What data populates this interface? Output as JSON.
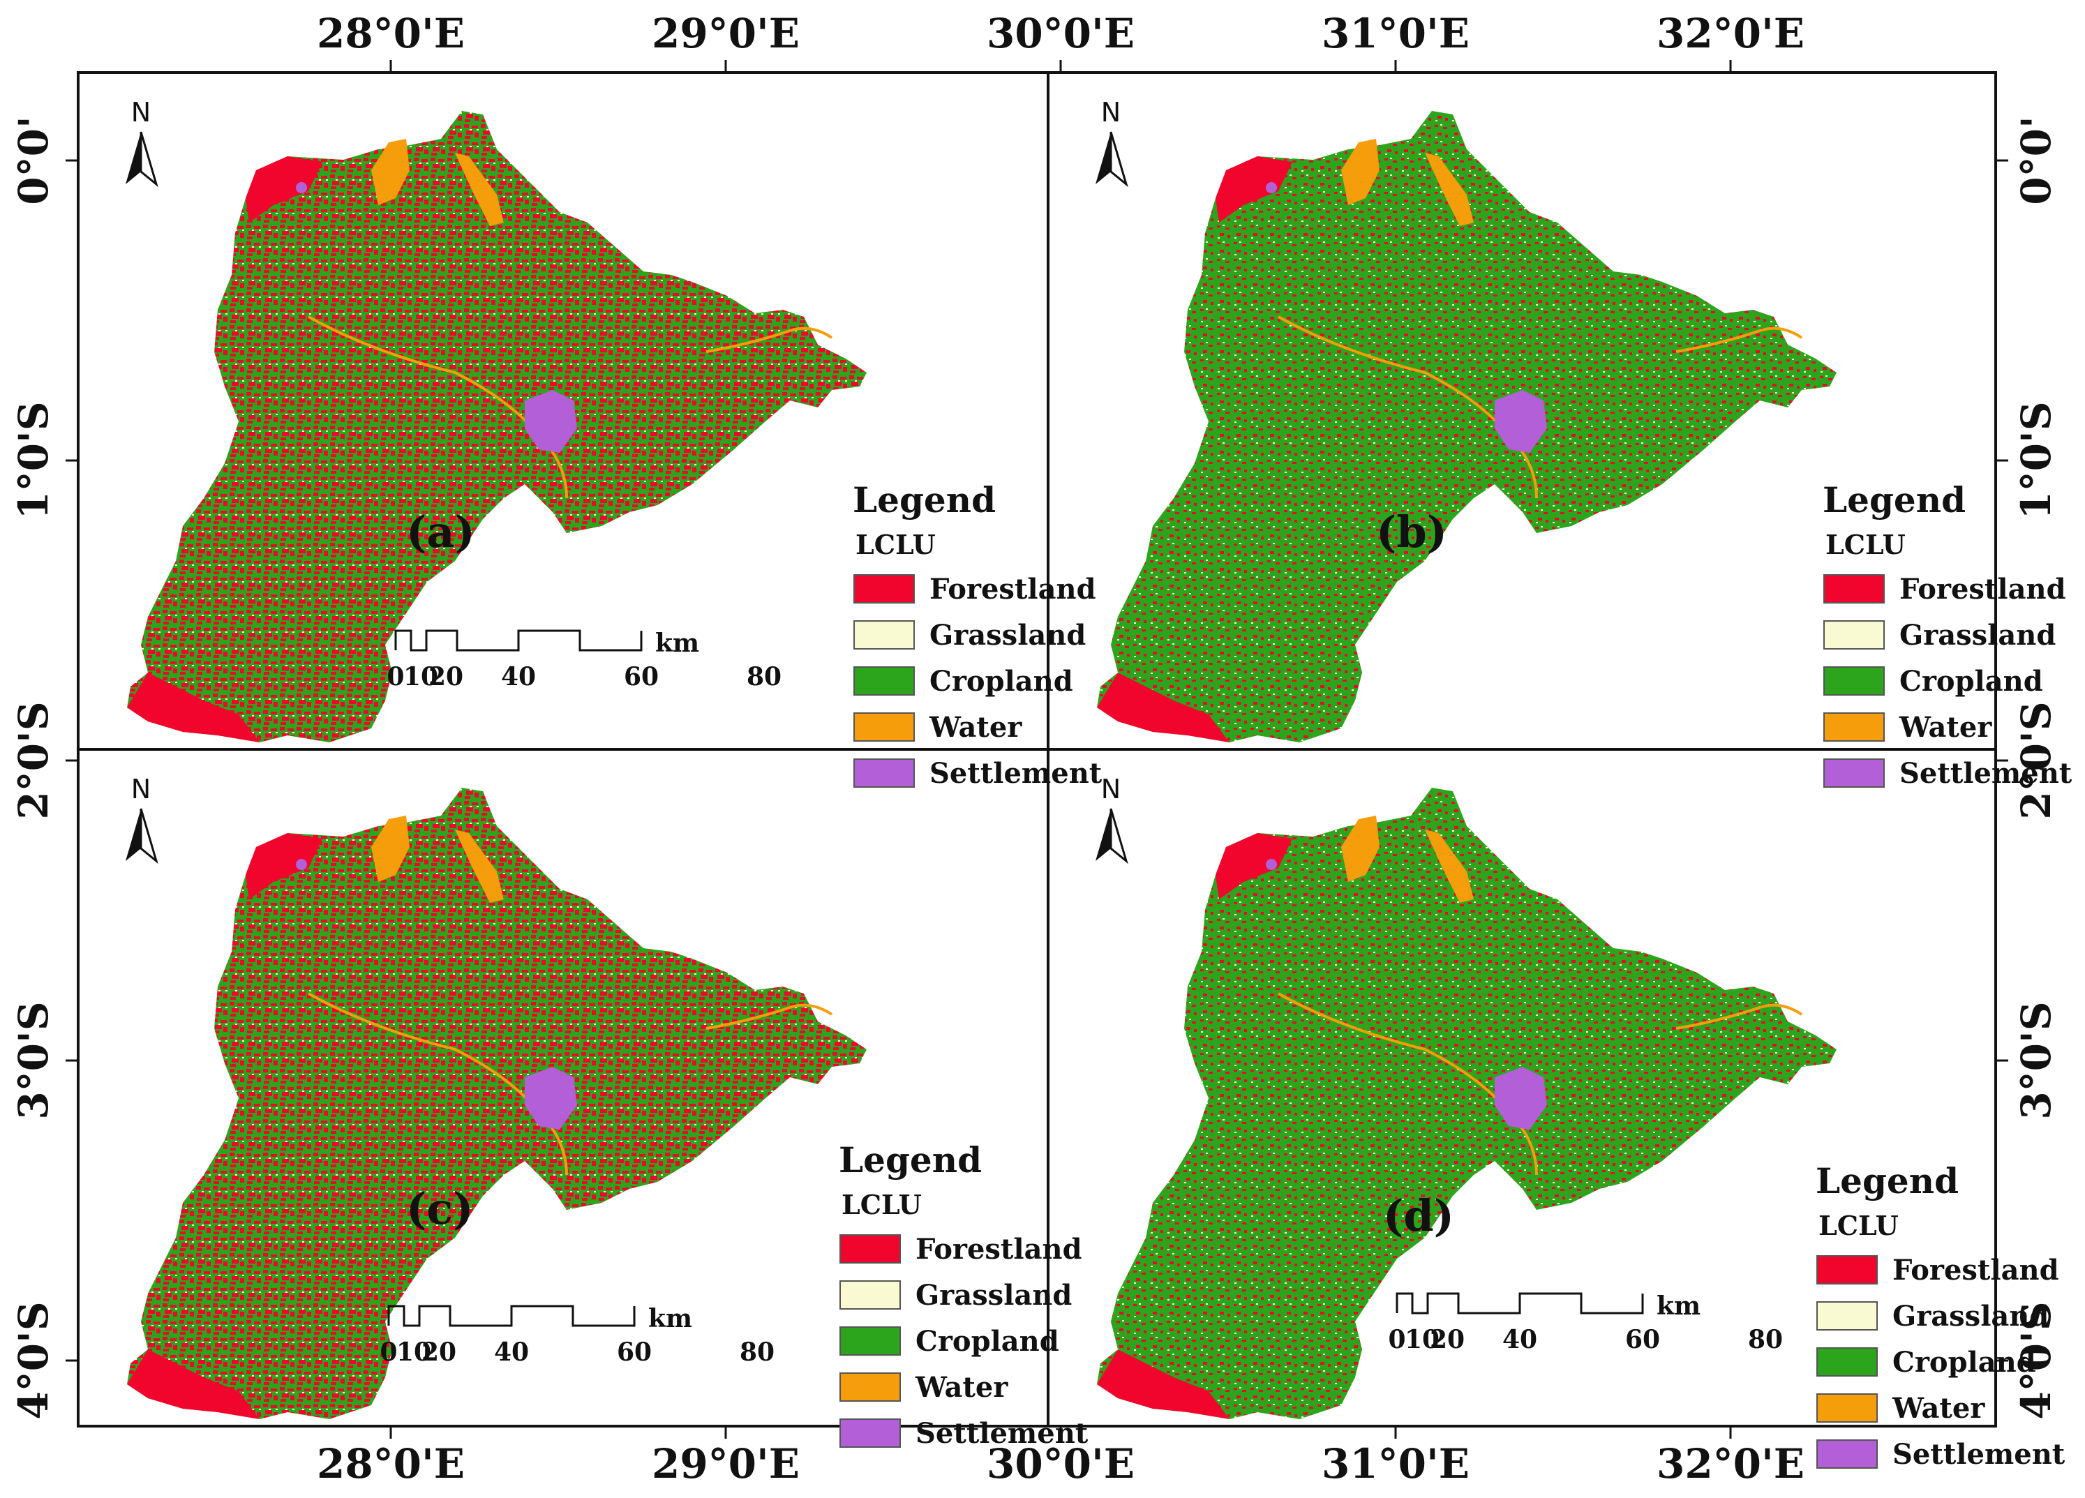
{
  "axes": {
    "top_labels": [
      "28°0'E",
      "29°0'E",
      "30°0'E",
      "31°0'E",
      "32°0'E"
    ],
    "bottom_labels": [
      "28°0'E",
      "29°0'E",
      "30°0'E",
      "31°0'E",
      "32°0'E"
    ],
    "left_labels": [
      "0°0'",
      "1°0'S",
      "2°0'S",
      "3°0'S",
      "4°0'S"
    ],
    "right_labels": [
      "0°0'",
      "1°0'S",
      "2°0'S",
      "3°0'S",
      "4°0'S"
    ]
  },
  "legend": {
    "title": "Legend",
    "subtitle": "LCLU",
    "classes": [
      {
        "label": "Forestland",
        "color": "#f2052d"
      },
      {
        "label": "Grassland",
        "color": "#fafad2"
      },
      {
        "label": "Cropland",
        "color": "#2ca51c"
      },
      {
        "label": "Water",
        "color": "#f59d0b"
      },
      {
        "label": "Settlement",
        "color": "#b25fd8"
      }
    ]
  },
  "north_arrow": {
    "letter": "N"
  },
  "scale_bar": {
    "ticks": [
      "0",
      "10",
      "20",
      "40",
      "60",
      "80"
    ],
    "unit": "km"
  },
  "panels": [
    {
      "id": "a",
      "label": "(a)",
      "dominant": "forest"
    },
    {
      "id": "b",
      "label": "(b)",
      "dominant": "crop"
    },
    {
      "id": "c",
      "label": "(c)",
      "dominant": "forest"
    },
    {
      "id": "d",
      "label": "(d)",
      "dominant": "crop"
    }
  ]
}
